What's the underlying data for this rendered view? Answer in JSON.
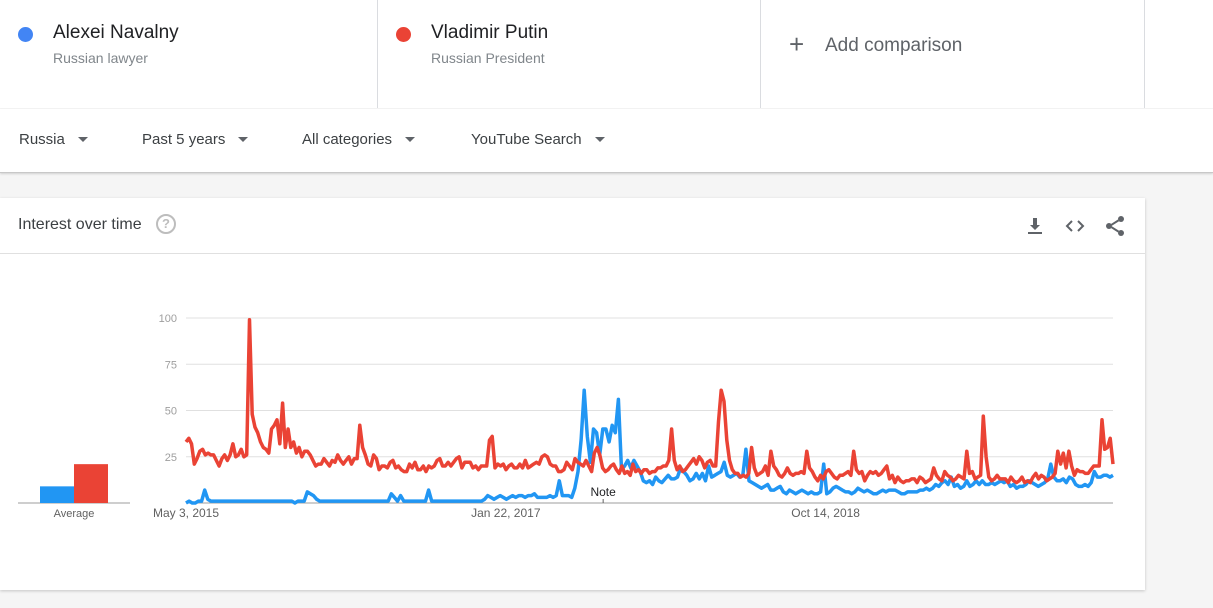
{
  "terms": [
    {
      "name": "Alexei Navalny",
      "subtitle": "Russian lawyer",
      "color": "#4285f4"
    },
    {
      "name": "Vladimir Putin",
      "subtitle": "Russian President",
      "color": "#ea4335"
    }
  ],
  "add_comparison": {
    "label": "Add comparison",
    "icon": "plus-icon"
  },
  "filters": {
    "region": "Russia",
    "time": "Past 5 years",
    "category": "All categories",
    "search_type": "YouTube Search"
  },
  "card": {
    "title": "Interest over time",
    "tools": [
      "download-icon",
      "embed-code-icon",
      "share-icon"
    ]
  },
  "chart_data": {
    "type": "line",
    "x_tick_labels": [
      "May 3, 2015",
      "Jan 22, 2017",
      "Oct 14, 2018"
    ],
    "ylim": [
      0,
      100
    ],
    "y_ticks": [
      25,
      50,
      75,
      100
    ],
    "grid": true,
    "note_label": "Note",
    "average_label": "Average",
    "averages": [
      {
        "series": "Alexei Navalny",
        "value": 9
      },
      {
        "series": "Vladimir Putin",
        "value": 21
      }
    ],
    "series": [
      {
        "name": "Alexei Navalny",
        "color": "#2196f3",
        "values": [
          0,
          1,
          0,
          0,
          1,
          1,
          7,
          2,
          1,
          1,
          1,
          1,
          1,
          1,
          1,
          1,
          1,
          1,
          1,
          1,
          1,
          1,
          1,
          1,
          1,
          1,
          1,
          1,
          1,
          1,
          1,
          1,
          1,
          1,
          1,
          0,
          1,
          1,
          1,
          6,
          5,
          4,
          2,
          1,
          1,
          1,
          1,
          1,
          1,
          1,
          1,
          1,
          1,
          1,
          1,
          1,
          1,
          1,
          1,
          1,
          1,
          1,
          1,
          1,
          1,
          1,
          5,
          3,
          1,
          4,
          1,
          1,
          1,
          1,
          1,
          1,
          1,
          1,
          7,
          1,
          1,
          1,
          1,
          1,
          1,
          1,
          1,
          1,
          1,
          1,
          1,
          1,
          1,
          1,
          1,
          1,
          2,
          4,
          3,
          2,
          3,
          4,
          3,
          2,
          3,
          4,
          3,
          4,
          4,
          3,
          4,
          4,
          5,
          3,
          3,
          3,
          3,
          4,
          3,
          4,
          12,
          4,
          4,
          4,
          3,
          8,
          17,
          34,
          61,
          36,
          22,
          40,
          38,
          26,
          40,
          40,
          33,
          42,
          38,
          56,
          18,
          20,
          23,
          19,
          23,
          20,
          17,
          12,
          11,
          12,
          10,
          14,
          12,
          11,
          13,
          15,
          13,
          13,
          14,
          19,
          17,
          15,
          12,
          13,
          16,
          13,
          16,
          12,
          20,
          14,
          15,
          16,
          17,
          22,
          15,
          14,
          15,
          16,
          14,
          15,
          29,
          12,
          11,
          10,
          9,
          8,
          9,
          10,
          7,
          7,
          8,
          9,
          6,
          5,
          7,
          6,
          5,
          6,
          7,
          6,
          5,
          6,
          5,
          5,
          6,
          21,
          5,
          6,
          8,
          9,
          8,
          7,
          6,
          6,
          5,
          6,
          8,
          7,
          6,
          7,
          6,
          5,
          5,
          6,
          7,
          6,
          7,
          7,
          7,
          6,
          5,
          5,
          6,
          6,
          6,
          6,
          7,
          7,
          8,
          7,
          8,
          10,
          9,
          11,
          12,
          10,
          14,
          9,
          10,
          8,
          9,
          12,
          9,
          10,
          12,
          10,
          12,
          10,
          10,
          11,
          10,
          11,
          12,
          11,
          12,
          9,
          10,
          8,
          9,
          9,
          10,
          12,
          11,
          10,
          9,
          10,
          11,
          13,
          21,
          14,
          12,
          12,
          13,
          11,
          14,
          13,
          10,
          9,
          9,
          10,
          9,
          11,
          17,
          14,
          14,
          15,
          15,
          14,
          15
        ]
      },
      {
        "name": "Vladimir Putin",
        "color": "#ea4335",
        "values": [
          33,
          35,
          32,
          21,
          24,
          28,
          29,
          26,
          27,
          26,
          26,
          23,
          20,
          24,
          26,
          23,
          26,
          32,
          25,
          26,
          29,
          25,
          26,
          99,
          48,
          41,
          38,
          33,
          30,
          29,
          27,
          40,
          42,
          45,
          32,
          54,
          30,
          40,
          30,
          33,
          27,
          30,
          25,
          28,
          28,
          26,
          23,
          20,
          21,
          21,
          24,
          22,
          20,
          23,
          22,
          26,
          23,
          21,
          23,
          25,
          21,
          24,
          24,
          42,
          30,
          26,
          21,
          20,
          26,
          24,
          18,
          20,
          20,
          19,
          22,
          23,
          19,
          20,
          18,
          17,
          17,
          21,
          19,
          22,
          18,
          18,
          20,
          17,
          20,
          19,
          20,
          23,
          24,
          20,
          20,
          22,
          20,
          22,
          24,
          25,
          19,
          22,
          22,
          22,
          19,
          20,
          18,
          20,
          20,
          20,
          34,
          36,
          19,
          21,
          20,
          21,
          18,
          20,
          21,
          19,
          19,
          21,
          19,
          23,
          19,
          20,
          21,
          22,
          21,
          25,
          26,
          25,
          21,
          20,
          20,
          17,
          17,
          18,
          22,
          20,
          18,
          24,
          22,
          21,
          20,
          23,
          20,
          17,
          27,
          30,
          26,
          19,
          17,
          18,
          20,
          21,
          18,
          16,
          20,
          16,
          17,
          15,
          21,
          17,
          18,
          16,
          18,
          18,
          16,
          17,
          17,
          19,
          19,
          20,
          20,
          23,
          40,
          23,
          18,
          20,
          17,
          18,
          20,
          22,
          24,
          21,
          25,
          23,
          19,
          22,
          23,
          20,
          20,
          44,
          61,
          55,
          34,
          23,
          18,
          16,
          16,
          14,
          15,
          14,
          16,
          30,
          19,
          15,
          16,
          17,
          20,
          15,
          28,
          20,
          18,
          15,
          14,
          16,
          19,
          16,
          15,
          16,
          16,
          17,
          16,
          28,
          19,
          17,
          14,
          12,
          15,
          13,
          17,
          18,
          16,
          14,
          13,
          15,
          15,
          16,
          17,
          15,
          28,
          18,
          16,
          17,
          12,
          15,
          17,
          16,
          17,
          15,
          16,
          18,
          20,
          13,
          15,
          11,
          14,
          12,
          11,
          12,
          12,
          13,
          13,
          11,
          14,
          13,
          11,
          12,
          13,
          19,
          15,
          13,
          12,
          17,
          15,
          14,
          12,
          13,
          15,
          14,
          13,
          28,
          16,
          17,
          13,
          14,
          15,
          47,
          25,
          14,
          12,
          13,
          15,
          13,
          13,
          13,
          11,
          14,
          12,
          11,
          12,
          14,
          11,
          12,
          11,
          14,
          16,
          13,
          15,
          14,
          12,
          13,
          14,
          16,
          28,
          21,
          27,
          19,
          28,
          20,
          15,
          18,
          17,
          17,
          16,
          16,
          18,
          20,
          20,
          20,
          45,
          29,
          30,
          35,
          21
        ]
      }
    ]
  }
}
